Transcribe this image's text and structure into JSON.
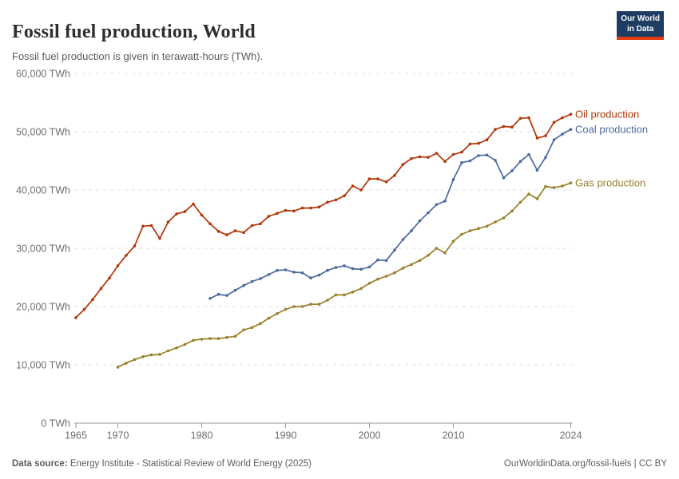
{
  "header": {
    "title": "Fossil fuel production, World",
    "subtitle": "Fossil fuel production is given in terawatt-hours (TWh).",
    "logo": {
      "line1": "Our World",
      "line2": "in Data",
      "bg_color": "#1d3d63",
      "bar_color": "#e63e13"
    }
  },
  "chart_data": {
    "type": "line",
    "title": "Fossil fuel production, World",
    "unit": "TWh",
    "xlabel": "",
    "ylabel": "TWh",
    "xlim": [
      1965,
      2024
    ],
    "ylim": [
      0,
      60000
    ],
    "grid": true,
    "legend_position": "right-end-labels",
    "x_ticks": [
      1965,
      1970,
      1980,
      1990,
      2000,
      2010,
      2024
    ],
    "y_ticks": [
      0,
      10000,
      20000,
      30000,
      40000,
      50000,
      60000
    ],
    "colors": {
      "grid": "#dedede",
      "axis": "#9a9a9a",
      "tick_label": "#6e6e6e"
    },
    "series": [
      {
        "name": "Oil production",
        "color": "#b13507",
        "start_year": 1965,
        "values": [
          18100,
          19500,
          21200,
          23100,
          24900,
          27000,
          28800,
          30400,
          33800,
          33900,
          31700,
          34500,
          35900,
          36300,
          37600,
          35700,
          34200,
          32900,
          32300,
          33000,
          32700,
          33900,
          34200,
          35500,
          36000,
          36500,
          36400,
          36900,
          36900,
          37100,
          37900,
          38300,
          39000,
          40700,
          40000,
          41900,
          41900,
          41400,
          42500,
          44400,
          45400,
          45700,
          45600,
          46300,
          44900,
          46100,
          46500,
          47900,
          48000,
          48600,
          50400,
          50900,
          50800,
          52300,
          52400,
          48900,
          49300,
          51600,
          52400,
          53000
        ]
      },
      {
        "name": "Coal production",
        "color": "#4c6a9c",
        "start_year": 1981,
        "values": [
          21400,
          22100,
          21900,
          22800,
          23600,
          24300,
          24800,
          25500,
          26200,
          26300,
          25900,
          25800,
          24900,
          25400,
          26200,
          26700,
          27000,
          26500,
          26400,
          26800,
          28000,
          27900,
          29700,
          31500,
          33000,
          34700,
          36100,
          37500,
          38100,
          41800,
          44700,
          45000,
          45900,
          46000,
          45100,
          42100,
          43300,
          44900,
          46100,
          43400,
          45600,
          48600,
          49600,
          50400
        ]
      },
      {
        "name": "Gas production",
        "color": "#99802a",
        "start_year": 1970,
        "values": [
          9600,
          10300,
          10900,
          11400,
          11700,
          11800,
          12400,
          12900,
          13500,
          14200,
          14400,
          14500,
          14500,
          14700,
          14900,
          16000,
          16400,
          17100,
          18000,
          18800,
          19500,
          20000,
          20000,
          20400,
          20400,
          21100,
          22000,
          22000,
          22500,
          23100,
          24000,
          24700,
          25200,
          25800,
          26600,
          27200,
          27900,
          28800,
          30000,
          29200,
          31200,
          32400,
          33000,
          33400,
          33800,
          34500,
          35200,
          36400,
          37900,
          39300,
          38500,
          40600,
          40400,
          40700,
          41200
        ]
      }
    ]
  },
  "footer": {
    "source_label": "Data source:",
    "source_text": " Energy Institute - Statistical Review of World Energy (2025)",
    "link_text": "OurWorldinData.org/fossil-fuels | CC BY"
  }
}
